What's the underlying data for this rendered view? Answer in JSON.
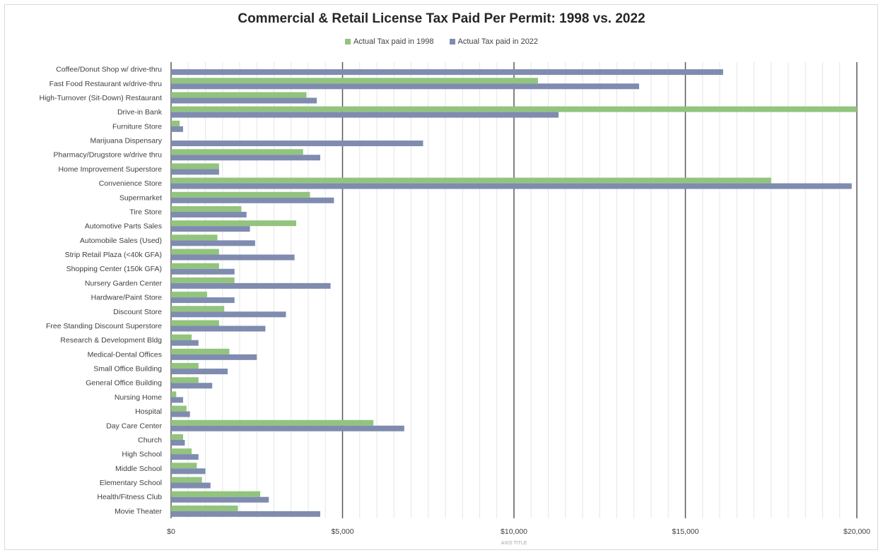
{
  "chart_data": {
    "type": "bar",
    "orientation": "horizontal",
    "title": "Commercial & Retail License Tax Paid Per Permit: 1998 vs. 2022",
    "xlabel": "AXIS TITLE",
    "ylabel": "",
    "xlim": [
      0,
      20000
    ],
    "x_ticks": [
      0,
      5000,
      10000,
      15000,
      20000
    ],
    "x_tick_labels": [
      "$0",
      "$5,000",
      "$10,000",
      "$15,000",
      "$20,000"
    ],
    "legend_position": "top",
    "grid": true,
    "categories": [
      "Coffee/Donut Shop w/ drive-thru",
      "Fast Food Restaurant w/drive-thru",
      "High-Turnover (Sit-Down) Restaurant",
      "Drive-in Bank",
      "Furniture Store",
      "Marijuana Dispensary",
      "Pharmacy/Drugstore w/drive thru",
      "Home Improvement Superstore",
      "Convenience Store",
      "Supermarket",
      "Tire Store",
      "Automotive Parts Sales",
      "Automobile Sales (Used)",
      "Strip Retail Plaza (<40k GFA)",
      "Shopping Center (150k GFA)",
      "Nursery Garden Center",
      "Hardware/Paint Store",
      "Discount Store",
      "Free Standing Discount Superstore",
      "Research & Development Bldg",
      "Medical-Dental Offices",
      "Small Office Building",
      "General Office Building",
      "Nursing Home",
      "Hospital",
      "Day Care Center",
      "Church",
      "High School",
      "Middle School",
      "Elementary School",
      "Health/Fitness Club",
      "Movie Theater"
    ],
    "series": [
      {
        "name": "Actual Tax paid in 1998",
        "color": "#92c47d",
        "values": [
          0,
          10700,
          3950,
          20000,
          250,
          0,
          3850,
          1400,
          17500,
          4050,
          2050,
          3650,
          1350,
          1400,
          1400,
          1850,
          1050,
          1550,
          1400,
          600,
          1700,
          800,
          800,
          150,
          450,
          5900,
          350,
          600,
          750,
          900,
          2600,
          1950
        ]
      },
      {
        "name": "Actual Tax paid in 2022",
        "color": "#7f8cb0",
        "values": [
          16100,
          13650,
          4250,
          11300,
          350,
          7350,
          4350,
          1400,
          19850,
          4750,
          2200,
          2300,
          2450,
          3600,
          1850,
          4650,
          1850,
          3350,
          2750,
          800,
          2500,
          1650,
          1200,
          350,
          550,
          6800,
          400,
          800,
          1000,
          1150,
          2850,
          4350
        ]
      }
    ]
  }
}
